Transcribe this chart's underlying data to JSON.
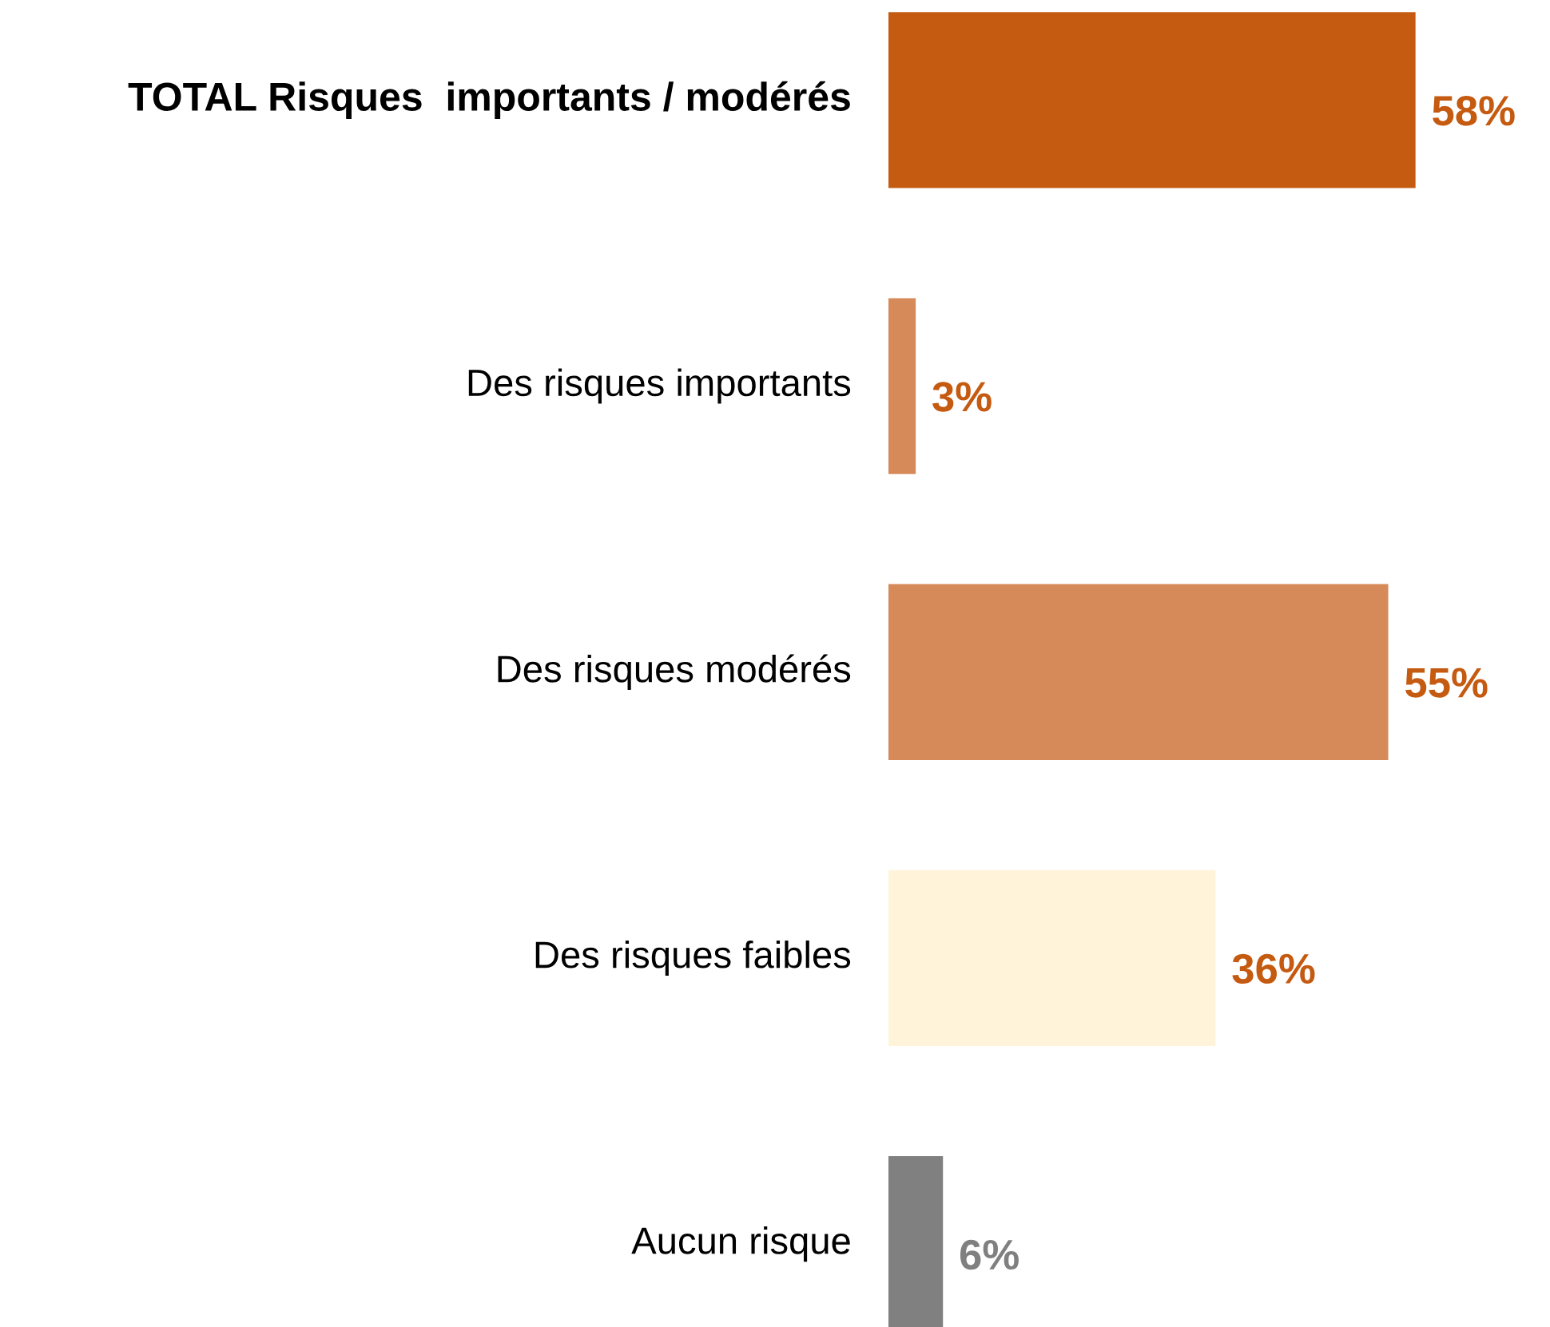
{
  "chart_data": {
    "type": "bar",
    "orientation": "horizontal",
    "categories": [
      "TOTAL Risques  importants / modérés",
      "Des risques importants",
      "Des risques modérés",
      "Des risques faibles",
      "Aucun risque"
    ],
    "values": [
      58,
      3,
      55,
      36,
      6
    ],
    "colors": [
      "#c55a11",
      "#d68a59",
      "#d68a59",
      "#fff4d9",
      "#808080"
    ],
    "value_labels": [
      "58%",
      "3%",
      "55%",
      "36%",
      "6%"
    ]
  }
}
